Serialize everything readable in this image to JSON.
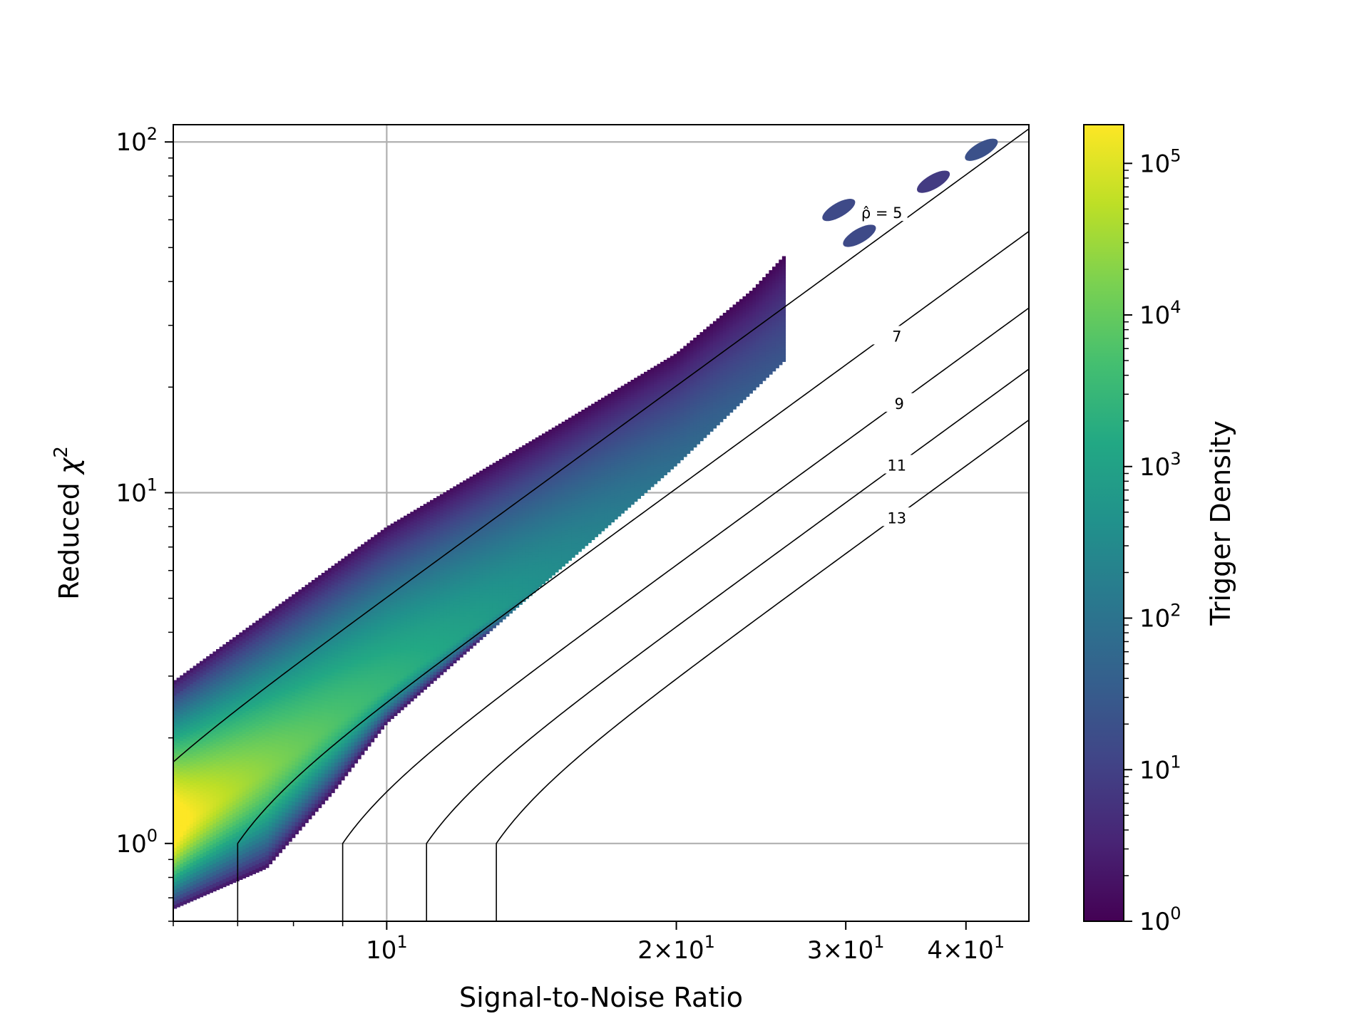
{
  "chart_data": {
    "type": "heatmap",
    "subtype": "hexbin-density",
    "title": "",
    "xlabel": "Signal-to-Noise Ratio",
    "ylabel": "Reduced χ²",
    "ylabel_parts": {
      "main": "Reduced ",
      "symbol": "χ",
      "exponent": "2"
    },
    "xscale": "log",
    "yscale": "log",
    "xlim": [
      6.0,
      46.5
    ],
    "ylim": [
      0.6,
      112
    ],
    "grid": true,
    "x_ticks": [
      {
        "value": 10,
        "mantissa": "",
        "base": "10",
        "exp": "1"
      },
      {
        "value": 20,
        "mantissa": "2×",
        "base": "10",
        "exp": "1"
      },
      {
        "value": 30,
        "mantissa": "3×",
        "base": "10",
        "exp": "1"
      },
      {
        "value": 40,
        "mantissa": "4×",
        "base": "10",
        "exp": "1"
      }
    ],
    "y_ticks": [
      {
        "value": 1,
        "base": "10",
        "exp": "0"
      },
      {
        "value": 10,
        "base": "10",
        "exp": "1"
      },
      {
        "value": 100,
        "base": "10",
        "exp": "2"
      }
    ],
    "colorbar": {
      "label": "Trigger Density",
      "scale": "log",
      "colormap": "viridis",
      "range": [
        1,
        180000
      ],
      "ticks": [
        {
          "value": 1,
          "base": "10",
          "exp": "0"
        },
        {
          "value": 10,
          "base": "10",
          "exp": "1"
        },
        {
          "value": 100,
          "base": "10",
          "exp": "2"
        },
        {
          "value": 1000,
          "base": "10",
          "exp": "3"
        },
        {
          "value": 10000,
          "base": "10",
          "exp": "4"
        },
        {
          "value": 100000,
          "base": "10",
          "exp": "5"
        }
      ]
    },
    "contours": [
      {
        "rho_hat": 5,
        "label_prefix": "ρ̂ = ",
        "label": "5",
        "label_at": [
          32.7,
          63
        ]
      },
      {
        "rho_hat": 7,
        "label_prefix": "",
        "label": "7",
        "label_at": [
          33.9,
          28
        ]
      },
      {
        "rho_hat": 9,
        "label_prefix": "",
        "label": "9",
        "label_at": [
          34.1,
          18
        ]
      },
      {
        "rho_hat": 11,
        "label_prefix": "",
        "label": "11",
        "label_at": [
          33.9,
          12
        ]
      },
      {
        "rho_hat": 13,
        "label_prefix": "",
        "label": "13",
        "label_at": [
          33.9,
          8.5
        ]
      }
    ],
    "density_band": {
      "description_values": "trigger density band in (SNR, reduced chi2) plane",
      "ridge": [
        [
          6,
          1.1
        ],
        [
          8,
          1.8
        ],
        [
          10,
          2.8
        ],
        [
          14,
          5.2
        ],
        [
          20,
          10.5
        ],
        [
          27,
          21
        ]
      ],
      "upper_edge": [
        [
          6,
          2.9
        ],
        [
          10,
          8.0
        ],
        [
          15,
          15.5
        ],
        [
          20,
          25
        ],
        [
          24,
          38
        ],
        [
          26,
          48
        ]
      ],
      "lower_edge": [
        [
          6,
          0.65
        ],
        [
          7.5,
          0.85
        ],
        [
          8.8,
          1.4
        ],
        [
          10,
          2.2
        ],
        [
          14,
          5.0
        ],
        [
          20,
          12
        ],
        [
          26,
          24
        ]
      ],
      "peak_density": 180000,
      "clusters": [
        {
          "x": 29.5,
          "y": 64,
          "density": 15
        },
        {
          "x": 31,
          "y": 54,
          "density": 15
        },
        {
          "x": 37,
          "y": 77,
          "density": 8
        },
        {
          "x": 41.5,
          "y": 95,
          "density": 20
        }
      ]
    }
  }
}
